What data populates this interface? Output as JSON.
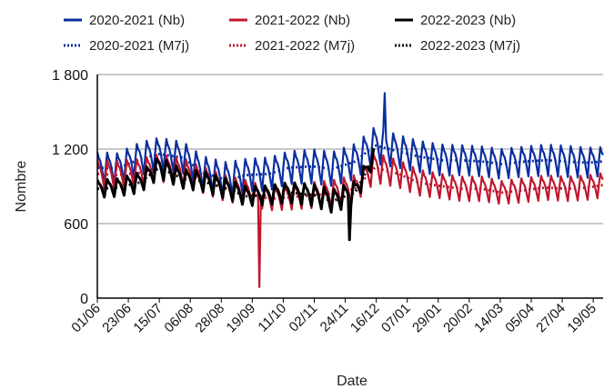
{
  "chart_data": {
    "type": "line",
    "title": "",
    "xlabel": "Date",
    "ylabel": "Nombre",
    "ylim": [
      0,
      1800
    ],
    "yticks": [
      0,
      600,
      1200,
      1800
    ],
    "ytick_labels": [
      "0",
      "600",
      "1 200",
      "1 800"
    ],
    "xlim": [
      "2020-06-01",
      "2021-05-26"
    ],
    "xtick_labels": [
      "01/06",
      "23/06",
      "15/07",
      "06/08",
      "28/08",
      "19/09",
      "11/10",
      "02/11",
      "24/11",
      "16/12",
      "07/01",
      "29/01",
      "20/02",
      "14/03",
      "05/04",
      "27/04",
      "19/05"
    ],
    "grid": "horizontal",
    "legend_position": "top",
    "colors": {
      "2020-2021": "#0a2fa0",
      "2021-2022": "#c0172e",
      "2022-2023": "#000000"
    },
    "series": [
      {
        "name": "2020-2021 (Nb)",
        "style": "solid",
        "color_key": "2020-2021",
        "x": [
          "2020-06-01",
          "2020-06-15",
          "2020-07-01",
          "2020-07-15",
          "2020-08-01",
          "2020-08-15",
          "2020-09-01",
          "2020-09-15",
          "2020-10-01",
          "2020-10-15",
          "2020-11-01",
          "2020-11-15",
          "2020-12-01",
          "2020-12-15",
          "2021-01-01",
          "2021-01-15",
          "2021-02-01",
          "2021-02-15",
          "2021-03-01",
          "2021-03-15",
          "2021-04-01",
          "2021-04-15",
          "2021-05-01",
          "2021-05-15",
          "2021-05-26"
        ],
        "y": [
          1050,
          1040,
          1120,
          1160,
          1130,
          1010,
          950,
          990,
          1000,
          1050,
          1060,
          1040,
          1100,
          1230,
          1180,
          1140,
          1110,
          1110,
          1100,
          1080,
          1100,
          1110,
          1100,
          1090,
          1100
        ],
        "amplitude": [
          230,
          230,
          240,
          240,
          230,
          240,
          260,
          240,
          240,
          240,
          250,
          250,
          260,
          270,
          240,
          230,
          230,
          220,
          220,
          220,
          220,
          230,
          230,
          220,
          210
        ]
      },
      {
        "name": "2021-2022 (Nb)",
        "style": "solid",
        "color_key": "2021-2022",
        "x": [
          "2020-06-01",
          "2020-06-15",
          "2020-07-01",
          "2020-07-15",
          "2020-08-01",
          "2020-08-15",
          "2020-09-01",
          "2020-09-15",
          "2020-10-01",
          "2020-10-15",
          "2020-11-01",
          "2020-11-15",
          "2020-12-01",
          "2020-12-15",
          "2021-01-01",
          "2021-01-15",
          "2021-02-01",
          "2021-02-15",
          "2021-03-01",
          "2021-03-15",
          "2021-04-01",
          "2021-04-15",
          "2021-05-01",
          "2021-05-15",
          "2021-05-26"
        ],
        "y": [
          1000,
          990,
          1010,
          1050,
          1010,
          950,
          880,
          850,
          800,
          810,
          830,
          840,
          880,
          1050,
          1000,
          930,
          900,
          880,
          880,
          850,
          870,
          890,
          880,
          890,
          910
        ],
        "amplitude": [
          210,
          210,
          200,
          200,
          200,
          190,
          190,
          180,
          170,
          180,
          190,
          200,
          200,
          220,
          200,
          190,
          180,
          180,
          180,
          170,
          180,
          180,
          180,
          180,
          180
        ]
      },
      {
        "name": "2022-2023 (Nb)",
        "style": "solid",
        "color_key": "2022-2023",
        "x": [
          "2020-06-01",
          "2020-06-15",
          "2020-07-01",
          "2020-07-15",
          "2020-08-01",
          "2020-08-15",
          "2020-09-01",
          "2020-09-15",
          "2020-10-01",
          "2020-10-15",
          "2020-11-01",
          "2020-11-15",
          "2020-12-01",
          "2020-12-15"
        ],
        "y": [
          880,
          890,
          930,
          1050,
          960,
          940,
          880,
          820,
          830,
          850,
          830,
          780,
          850,
          1150
        ],
        "amplitude": [
          130,
          130,
          150,
          160,
          140,
          150,
          150,
          140,
          140,
          150,
          160,
          170,
          170,
          120
        ]
      },
      {
        "name": "2020-2021 (M7j)",
        "style": "dotted",
        "color_key": "2020-2021",
        "x": [
          "2020-06-01",
          "2020-06-15",
          "2020-07-01",
          "2020-07-15",
          "2020-08-01",
          "2020-08-15",
          "2020-09-01",
          "2020-09-15",
          "2020-10-01",
          "2020-10-15",
          "2020-11-01",
          "2020-11-15",
          "2020-12-01",
          "2020-12-15",
          "2021-01-01",
          "2021-01-15",
          "2021-02-01",
          "2021-02-15",
          "2021-03-01",
          "2021-03-15",
          "2021-04-01",
          "2021-04-15",
          "2021-05-01",
          "2021-05-15",
          "2021-05-26"
        ],
        "y": [
          1050,
          1040,
          1120,
          1160,
          1130,
          1010,
          950,
          990,
          1000,
          1050,
          1060,
          1040,
          1100,
          1230,
          1180,
          1140,
          1110,
          1110,
          1100,
          1080,
          1100,
          1110,
          1100,
          1090,
          1100
        ]
      },
      {
        "name": "2021-2022 (M7j)",
        "style": "dotted",
        "color_key": "2021-2022",
        "x": [
          "2020-06-01",
          "2020-06-15",
          "2020-07-01",
          "2020-07-15",
          "2020-08-01",
          "2020-08-15",
          "2020-09-01",
          "2020-09-15",
          "2020-10-01",
          "2020-10-15",
          "2020-11-01",
          "2020-11-15",
          "2020-12-01",
          "2020-12-15",
          "2021-01-01",
          "2021-01-15",
          "2021-02-01",
          "2021-02-15",
          "2021-03-01",
          "2021-03-15",
          "2021-04-01",
          "2021-04-15",
          "2021-05-01",
          "2021-05-15",
          "2021-05-26"
        ],
        "y": [
          1000,
          990,
          1010,
          1050,
          1010,
          950,
          880,
          850,
          800,
          810,
          830,
          840,
          880,
          1050,
          1000,
          930,
          900,
          880,
          880,
          850,
          870,
          890,
          880,
          890,
          910
        ]
      },
      {
        "name": "2022-2023 (M7j)",
        "style": "dotted",
        "color_key": "2022-2023",
        "x": [
          "2020-06-01",
          "2020-06-15",
          "2020-07-01",
          "2020-07-15",
          "2020-08-01",
          "2020-08-15",
          "2020-09-01",
          "2020-09-15",
          "2020-10-01",
          "2020-10-15",
          "2020-11-01",
          "2020-11-15",
          "2020-12-01",
          "2020-12-15"
        ],
        "y": [
          880,
          890,
          930,
          1050,
          960,
          940,
          880,
          820,
          830,
          850,
          830,
          780,
          850,
          1150
        ]
      }
    ],
    "annotations": [
      {
        "series": "2021-2022 (Nb)",
        "x": "2020-09-24",
        "y": 90,
        "note": "sharp minimum"
      },
      {
        "series": "2022-2023 (Nb)",
        "x": "2020-11-27",
        "y": 470,
        "note": "minimum"
      },
      {
        "series": "2020-2021 (Nb)",
        "x": "2020-12-22",
        "y": 1650,
        "note": "maximum"
      }
    ]
  }
}
